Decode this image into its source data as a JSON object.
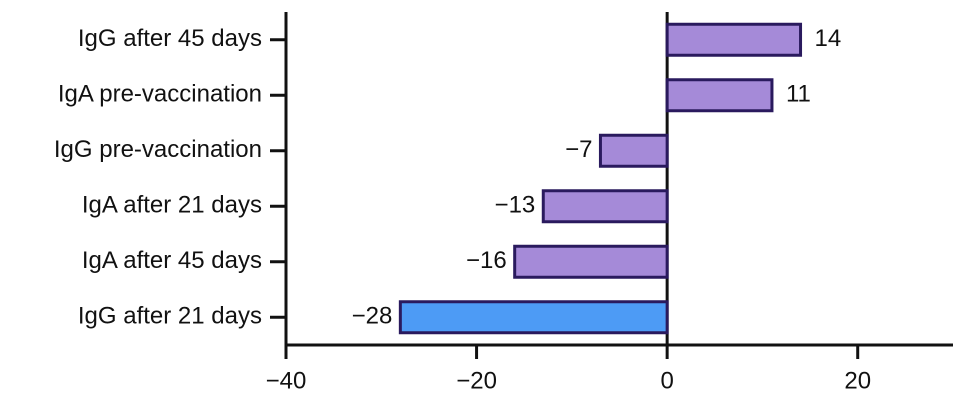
{
  "chart_data": {
    "type": "bar",
    "orientation": "horizontal",
    "categories": [
      "IgG after 45 days",
      "IgA pre-vaccination",
      "IgG pre-vaccination",
      "IgA after 21 days",
      "IgA after 45 days",
      "IgG after 21 days"
    ],
    "values": [
      14,
      11,
      -7,
      -13,
      -16,
      -28
    ],
    "value_labels": [
      "14",
      "11",
      "−7",
      "−13",
      "−16",
      "−28"
    ],
    "colors": [
      "#a58ad8",
      "#a58ad8",
      "#a58ad8",
      "#a58ad8",
      "#a58ad8",
      "#4d9bf5"
    ],
    "edge_color": "#2a1a5e",
    "xlim": [
      -40,
      30
    ],
    "xticks": [
      {
        "value": -40,
        "label": "−40"
      },
      {
        "value": -20,
        "label": "−20"
      },
      0,
      20
    ]
  }
}
